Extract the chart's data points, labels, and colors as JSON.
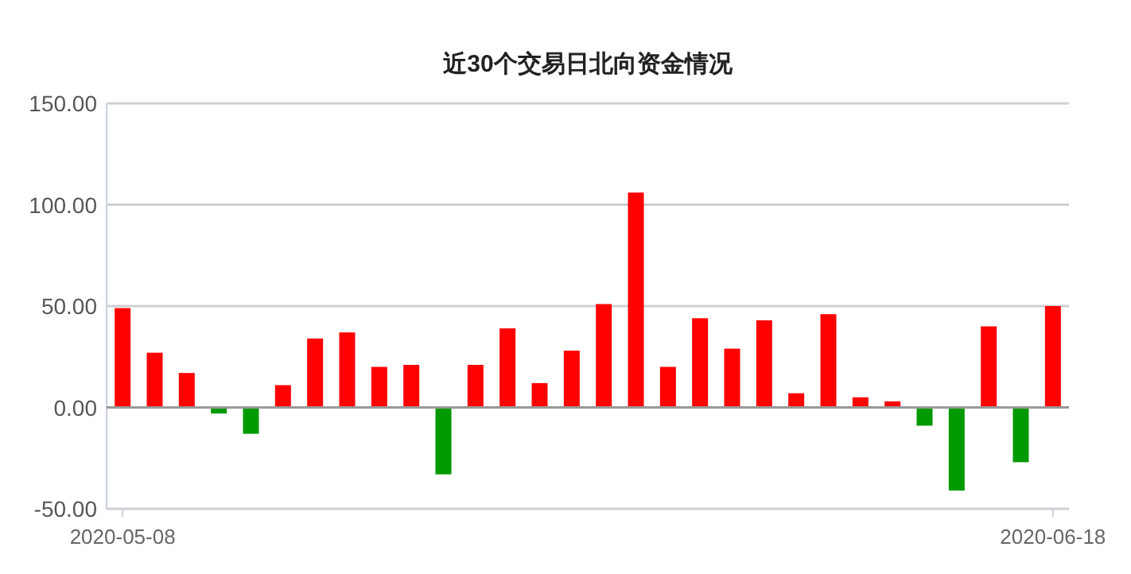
{
  "chart_data": {
    "type": "bar",
    "title": "近30个交易日北向资金情况",
    "categories": [
      "2020-05-08",
      null,
      null,
      null,
      null,
      null,
      null,
      null,
      null,
      null,
      null,
      null,
      null,
      null,
      null,
      null,
      null,
      null,
      null,
      null,
      null,
      null,
      null,
      null,
      null,
      null,
      null,
      null,
      null,
      "2020-06-18"
    ],
    "values": [
      49,
      27,
      17,
      -3,
      -13,
      11,
      34,
      37,
      20,
      21,
      -33,
      21,
      39,
      12,
      28,
      51,
      106,
      20,
      44,
      29,
      43,
      7,
      46,
      5,
      3,
      -9,
      -41,
      40,
      -27,
      50
    ],
    "colors": [
      "#ff0000",
      "#ff0000",
      "#ff0000",
      "#009900",
      "#009900",
      "#ff0000",
      "#ff0000",
      "#ff0000",
      "#ff0000",
      "#ff0000",
      "#009900",
      "#ff0000",
      "#ff0000",
      "#ff0000",
      "#ff0000",
      "#ff0000",
      "#ff0000",
      "#ff0000",
      "#ff0000",
      "#ff0000",
      "#ff0000",
      "#ff0000",
      "#ff0000",
      "#ff0000",
      "#ff0000",
      "#009900",
      "#009900",
      "#ff0000",
      "#009900",
      "#ff0000"
    ],
    "ylim": [
      -50,
      150
    ],
    "yticks": [
      {
        "value": -50,
        "label": "-50.00"
      },
      {
        "value": 0,
        "label": "0.00"
      },
      {
        "value": 50,
        "label": "50.00"
      },
      {
        "value": 100,
        "label": "100.00"
      },
      {
        "value": 150,
        "label": "150.00"
      }
    ],
    "grid": "y"
  }
}
